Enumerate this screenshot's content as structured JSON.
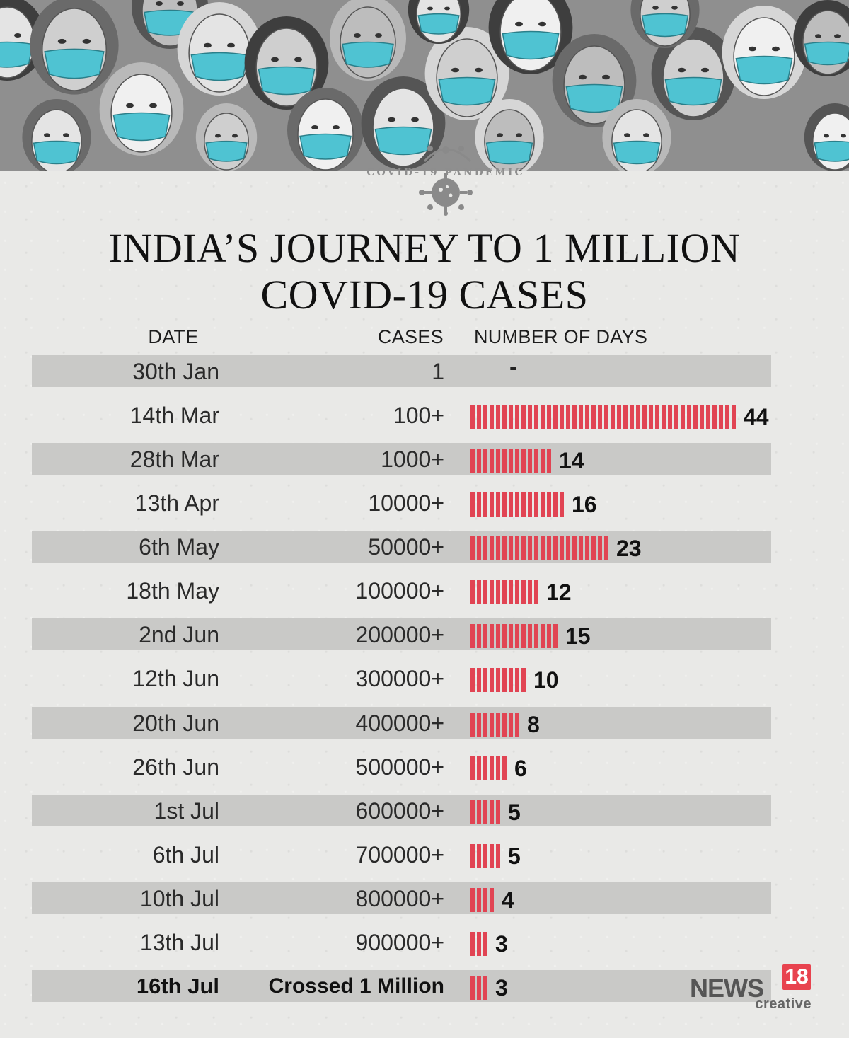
{
  "theme": {
    "bar_color": "#e14453",
    "mask_color": "#4fc3d2",
    "row_shade": "#c9c9c7",
    "background": "#e9e9e7",
    "logo_accent": "#e8434f"
  },
  "banner": {
    "illustration": "crowd-of-people-wearing-face-masks",
    "emblem_text": "COVID-19 PANDEMIC",
    "emblem_icon": "virus-icon"
  },
  "title_line1": "INDIA’S JOURNEY TO 1 MILLION",
  "title_line2": "COVID-19 CASES",
  "headers": {
    "date": "DATE",
    "cases": "CASES",
    "days": "NUMBER OF DAYS"
  },
  "chart_data": {
    "type": "bar",
    "orientation": "horizontal",
    "title": "INDIA’S JOURNEY TO 1 MILLION COVID-19 CASES",
    "columns": [
      "DATE",
      "CASES",
      "NUMBER OF DAYS"
    ],
    "categories": [
      "30th Jan",
      "14th Mar",
      "28th Mar",
      "13th Apr",
      "6th May",
      "18th May",
      "2nd Jun",
      "12th Jun",
      "20th Jun",
      "26th Jun",
      "1st Jul",
      "6th Jul",
      "10th Jul",
      "13th Jul",
      "16th Jul"
    ],
    "cases_labels": [
      "1",
      "100+",
      "1000+",
      "10000+",
      "50000+",
      "100000+",
      "200000+",
      "300000+",
      "400000+",
      "500000+",
      "600000+",
      "700000+",
      "800000+",
      "900000+",
      "Crossed 1 Million"
    ],
    "values": [
      null,
      44,
      14,
      16,
      23,
      12,
      15,
      10,
      8,
      6,
      5,
      5,
      4,
      3,
      3
    ],
    "value_labels": [
      "-",
      "44",
      "14",
      "16",
      "23",
      "12",
      "15",
      "10",
      "8",
      "6",
      "5",
      "5",
      "4",
      "3",
      "3"
    ],
    "xlim": [
      0,
      44
    ],
    "grid": false,
    "legend": "none"
  },
  "logo": {
    "main": "NEWS",
    "number": "18",
    "sub": "creative"
  }
}
